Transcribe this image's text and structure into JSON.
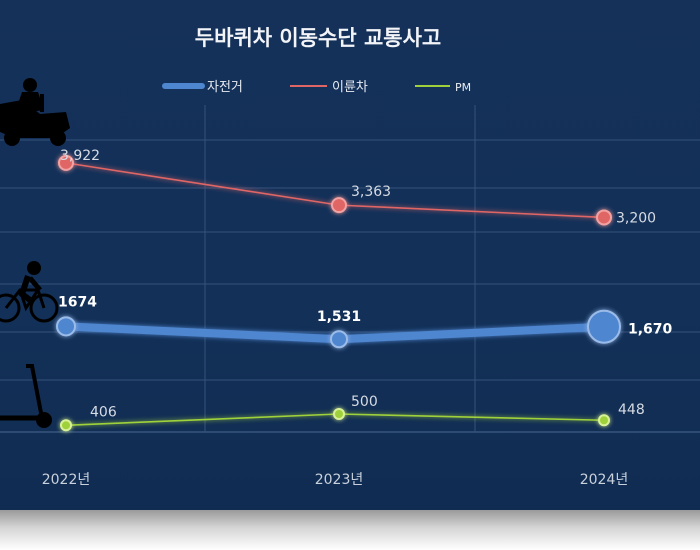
{
  "chart_data": {
    "type": "line",
    "title": "두바퀴차 이동수단 교통사고",
    "categories": [
      "2022년",
      "2023년",
      "2024년"
    ],
    "series": [
      {
        "name": "자전거",
        "values": [
          1674,
          1531,
          1670
        ],
        "labels": [
          "1674",
          "1,531",
          "1,670"
        ],
        "color": "#4f86d0"
      },
      {
        "name": "이륜차",
        "values": [
          3922,
          3363,
          3200
        ],
        "labels": [
          "3,922",
          "3,363",
          "3,200"
        ],
        "color": "#e06666"
      },
      {
        "name": "PM",
        "values": [
          406,
          500,
          448
        ],
        "labels": [
          "406",
          "500",
          "448"
        ],
        "color": "#9fd13a"
      }
    ],
    "legend_position": "top",
    "grid": true
  },
  "icons": [
    "motorcycle-icon",
    "bicycle-icon",
    "kick-scooter-icon"
  ]
}
